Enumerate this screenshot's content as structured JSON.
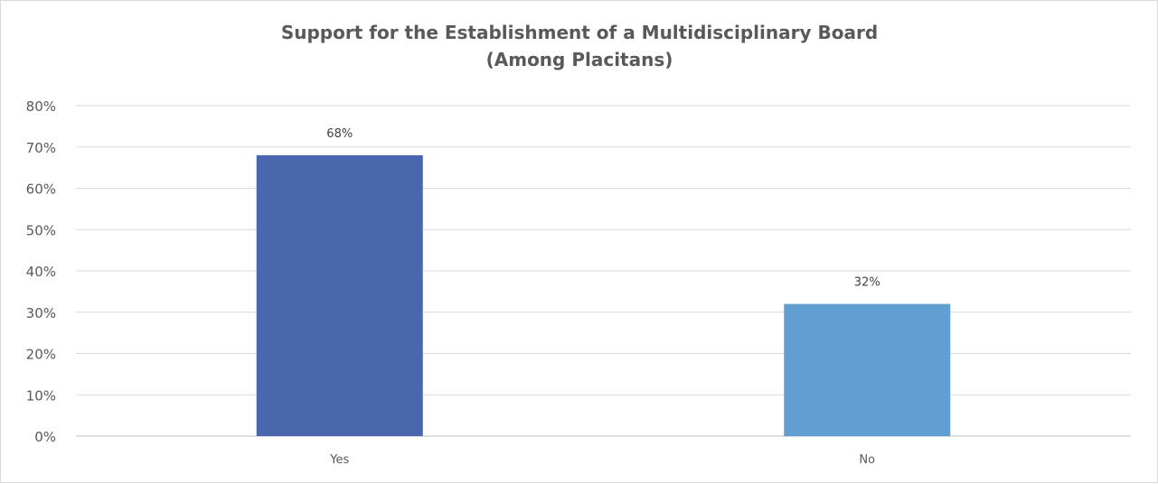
{
  "chart_data": {
    "type": "bar",
    "title": "Support for the Establishment of a Multidisciplinary Board",
    "subtitle": "(Among Placitans)",
    "categories": [
      "Yes",
      "No"
    ],
    "values": [
      68,
      32
    ],
    "data_labels": [
      "68%",
      "32%"
    ],
    "bar_colors": [
      "#4a67ae",
      "#629ed2"
    ],
    "ylim": [
      0,
      80
    ],
    "yticks": [
      0,
      10,
      20,
      30,
      40,
      50,
      60,
      70,
      80
    ],
    "ytick_labels": [
      "0%",
      "10%",
      "20%",
      "30%",
      "40%",
      "50%",
      "60%",
      "70%",
      "80%"
    ],
    "xlabel": "",
    "ylabel": "",
    "grid": true,
    "legend": "none"
  }
}
